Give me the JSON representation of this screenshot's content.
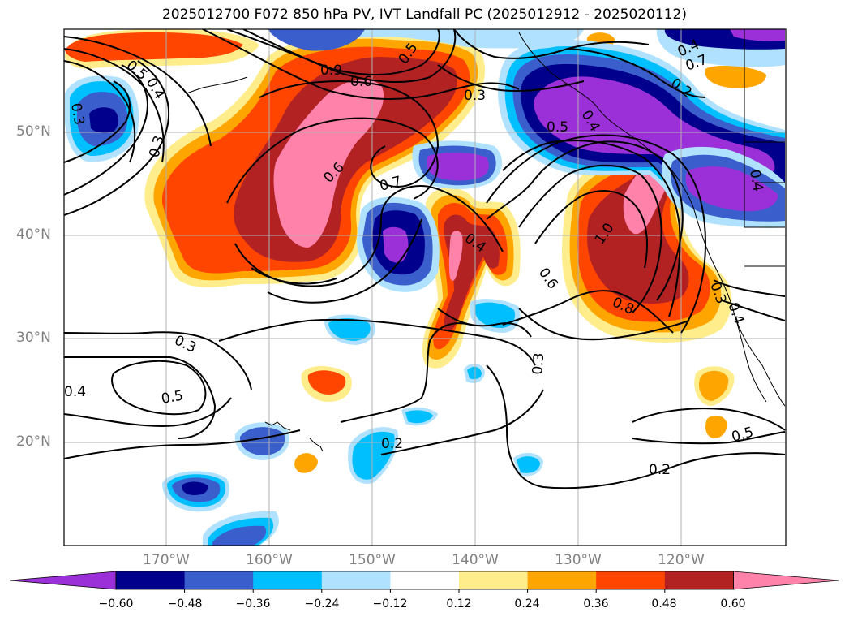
{
  "title": "2025012700 F072 850 hPa PV, IVT Landfall PC (2025012912 - 2025020112)",
  "map": {
    "lon_range": [
      -180,
      -110
    ],
    "lat_range": [
      10,
      60
    ],
    "lat_labels": [
      "50°N",
      "40°N",
      "30°N",
      "20°N"
    ],
    "lon_labels": [
      "170°W",
      "160°W",
      "150°W",
      "140°W",
      "130°W",
      "120°W"
    ],
    "gridlines": true
  },
  "colorbar": {
    "ticks": [
      "−0.60",
      "−0.48",
      "−0.36",
      "−0.24",
      "−0.12",
      "0.12",
      "0.24",
      "0.36",
      "0.48",
      "0.60"
    ],
    "colors": [
      "#9b30d9",
      "#00008c",
      "#3a5fcd",
      "#00bfff",
      "#b0e2ff",
      "#ffffff",
      "#ffec8b",
      "#ffa500",
      "#ff4500",
      "#b22222",
      "#ff82ab"
    ],
    "extend": "both"
  },
  "contour_labels": [
    "0.5",
    "0.4",
    "0.3",
    "0.9",
    "0.6",
    "0.5",
    "0.3",
    "0.7",
    "0.6",
    "0.7",
    "0.4",
    "0.2",
    "0.5",
    "0.4",
    "1.0",
    "0.6",
    "0.8",
    "0.3",
    "0.4",
    "0.3",
    "0.3",
    "0.5",
    "0.2",
    "0.2",
    "0.5",
    "0.4",
    "0.4",
    "0.3",
    "0.4"
  ]
}
